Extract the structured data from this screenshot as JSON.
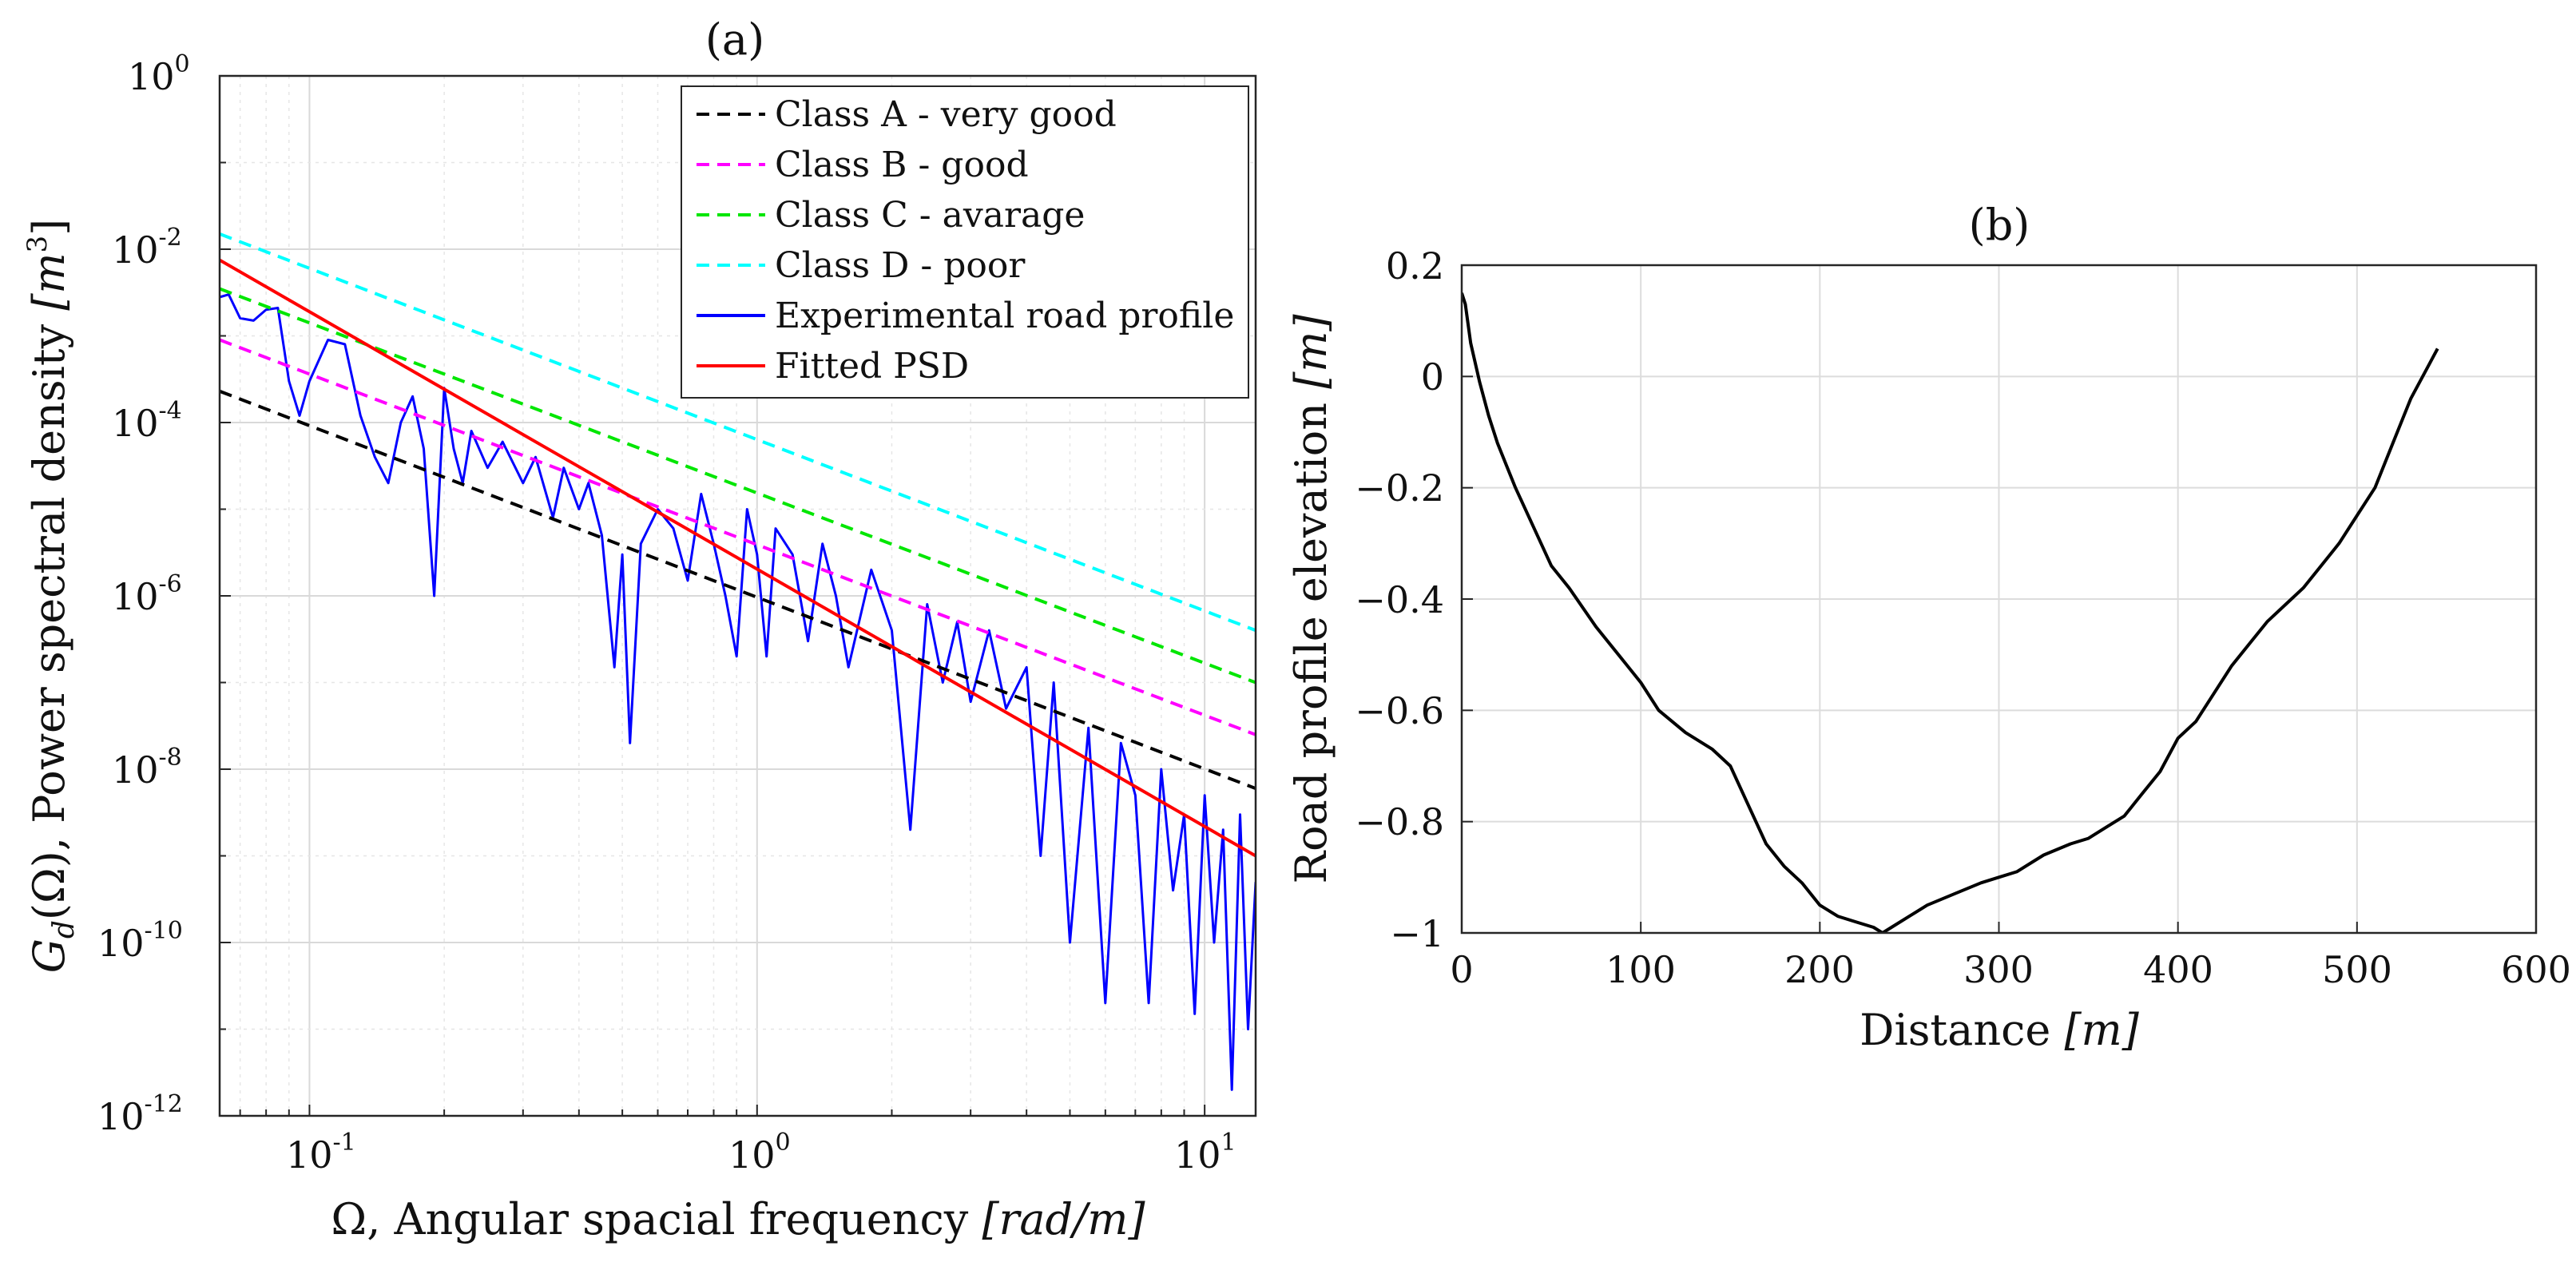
{
  "chart_data": [
    {
      "type": "line",
      "title": "(a)",
      "xscale": "log",
      "yscale": "log",
      "xlim": [
        0.063,
        13
      ],
      "ylim": [
        1e-12,
        1
      ],
      "xlabel": {
        "prefix": "Ω, Angular spacial frequency ",
        "unit": "[rad/m]"
      },
      "ylabel": {
        "prefix": "G",
        "sub": "d",
        "mid": "(Ω), Power spectral density ",
        "unit": "[m",
        "sup": "3",
        "close": "]"
      },
      "xticks": [
        {
          "base": "10",
          "exp": "-1"
        },
        {
          "base": "10",
          "exp": "0"
        },
        {
          "base": "10",
          "exp": "1"
        }
      ],
      "xtick_values": [
        0.1,
        1,
        10
      ],
      "yticks": [
        {
          "base": "10",
          "exp": "0"
        },
        {
          "base": "10",
          "exp": "-2"
        },
        {
          "base": "10",
          "exp": "-4"
        },
        {
          "base": "10",
          "exp": "-6"
        },
        {
          "base": "10",
          "exp": "-8"
        },
        {
          "base": "10",
          "exp": "-10"
        },
        {
          "base": "10",
          "exp": "-12"
        }
      ],
      "ytick_values": [
        1,
        0.01,
        0.0001,
        1e-06,
        1e-08,
        1e-10,
        1e-12
      ],
      "grid": true,
      "minor_grid": true,
      "legend_position": "top-right",
      "series": [
        {
          "name": "Class A - very good",
          "style": "dashed",
          "color": "#000000",
          "points": [
            [
              0.063,
              0.00023
            ],
            [
              13,
              6e-09
            ]
          ]
        },
        {
          "name": "Class B - good",
          "style": "dashed",
          "color": "#ff00ff",
          "points": [
            [
              0.063,
              0.0009
            ],
            [
              13,
              2.5e-08
            ]
          ]
        },
        {
          "name": "Class C - avarage",
          "style": "dashed",
          "color": "#00e600",
          "points": [
            [
              0.063,
              0.0035
            ],
            [
              13,
              1e-07
            ]
          ]
        },
        {
          "name": "Class D - poor",
          "style": "dashed",
          "color": "#00ffff",
          "points": [
            [
              0.063,
              0.015
            ],
            [
              13,
              4e-07
            ]
          ]
        },
        {
          "name": "Experimental road profile",
          "style": "solid",
          "color": "#0000ff",
          "points": [
            [
              0.063,
              0.0028
            ],
            [
              0.066,
              0.003
            ],
            [
              0.07,
              0.0016
            ],
            [
              0.075,
              0.0015
            ],
            [
              0.08,
              0.002
            ],
            [
              0.085,
              0.0021
            ],
            [
              0.09,
              0.0003
            ],
            [
              0.095,
              0.00012
            ],
            [
              0.1,
              0.0003
            ],
            [
              0.11,
              0.0009
            ],
            [
              0.12,
              0.0008
            ],
            [
              0.13,
              0.00012
            ],
            [
              0.14,
              4e-05
            ],
            [
              0.15,
              2e-05
            ],
            [
              0.16,
              0.0001
            ],
            [
              0.17,
              0.0002
            ],
            [
              0.18,
              5e-05
            ],
            [
              0.19,
              1e-06
            ],
            [
              0.2,
              0.00025
            ],
            [
              0.21,
              5e-05
            ],
            [
              0.22,
              2e-05
            ],
            [
              0.23,
              8e-05
            ],
            [
              0.25,
              3e-05
            ],
            [
              0.27,
              6e-05
            ],
            [
              0.3,
              2e-05
            ],
            [
              0.32,
              4e-05
            ],
            [
              0.35,
              8e-06
            ],
            [
              0.37,
              3e-05
            ],
            [
              0.4,
              1e-05
            ],
            [
              0.42,
              2e-05
            ],
            [
              0.45,
              5e-06
            ],
            [
              0.48,
              1.5e-07
            ],
            [
              0.5,
              3e-06
            ],
            [
              0.52,
              2e-08
            ],
            [
              0.55,
              4e-06
            ],
            [
              0.6,
              1e-05
            ],
            [
              0.65,
              6e-06
            ],
            [
              0.7,
              1.5e-06
            ],
            [
              0.75,
              1.5e-05
            ],
            [
              0.8,
              4e-06
            ],
            [
              0.85,
              1e-06
            ],
            [
              0.9,
              2e-07
            ],
            [
              0.95,
              1e-05
            ],
            [
              1.0,
              3e-06
            ],
            [
              1.05,
              2e-07
            ],
            [
              1.1,
              6e-06
            ],
            [
              1.2,
              3e-06
            ],
            [
              1.3,
              3e-07
            ],
            [
              1.4,
              4e-06
            ],
            [
              1.5,
              1e-06
            ],
            [
              1.6,
              1.5e-07
            ],
            [
              1.8,
              2e-06
            ],
            [
              2.0,
              4e-07
            ],
            [
              2.2,
              2e-09
            ],
            [
              2.4,
              8e-07
            ],
            [
              2.6,
              1e-07
            ],
            [
              2.8,
              5e-07
            ],
            [
              3.0,
              6e-08
            ],
            [
              3.3,
              4e-07
            ],
            [
              3.6,
              5e-08
            ],
            [
              4.0,
              1.5e-07
            ],
            [
              4.3,
              1e-09
            ],
            [
              4.6,
              1e-07
            ],
            [
              5.0,
              1e-10
            ],
            [
              5.5,
              3e-08
            ],
            [
              6.0,
              2e-11
            ],
            [
              6.5,
              2e-08
            ],
            [
              7.0,
              5e-09
            ],
            [
              7.5,
              2e-11
            ],
            [
              8.0,
              1e-08
            ],
            [
              8.5,
              4e-10
            ],
            [
              9.0,
              3e-09
            ],
            [
              9.5,
              1.5e-11
            ],
            [
              10.0,
              5e-09
            ],
            [
              10.5,
              1e-10
            ],
            [
              11.0,
              2e-09
            ],
            [
              11.5,
              2e-12
            ],
            [
              12.0,
              3e-09
            ],
            [
              12.5,
              1e-11
            ],
            [
              13.0,
              5e-10
            ]
          ]
        },
        {
          "name": "Fitted PSD",
          "style": "solid",
          "color": "#ff0000",
          "points": [
            [
              0.063,
              0.0075
            ],
            [
              13,
              1e-09
            ]
          ]
        }
      ]
    },
    {
      "type": "line",
      "title": "(b)",
      "xlim": [
        0,
        600
      ],
      "ylim": [
        -1,
        0.2
      ],
      "xlabel": {
        "prefix": "Distance ",
        "unit": "[m]"
      },
      "ylabel": {
        "prefix": "Road profile elevation ",
        "unit": "[m]"
      },
      "xticks": [
        "0",
        "100",
        "200",
        "300",
        "400",
        "500",
        "600"
      ],
      "xtick_values": [
        0,
        100,
        200,
        300,
        400,
        500,
        600
      ],
      "yticks": [
        "0.2",
        "0",
        "−0.2",
        "−0.4",
        "−0.6",
        "−0.8",
        "−1"
      ],
      "ytick_values": [
        0.2,
        0,
        -0.2,
        -0.4,
        -0.6,
        -0.8,
        -1
      ],
      "grid": true,
      "series": [
        {
          "name": "Road profile",
          "color": "#000000",
          "x": [
            0,
            2,
            5,
            10,
            15,
            20,
            25,
            30,
            40,
            50,
            60,
            75,
            90,
            100,
            110,
            125,
            140,
            150,
            160,
            170,
            180,
            190,
            200,
            210,
            220,
            230,
            235,
            240,
            250,
            260,
            275,
            290,
            300,
            310,
            325,
            340,
            350,
            360,
            370,
            375,
            380,
            390,
            400,
            410,
            420,
            430,
            440,
            450,
            460,
            470,
            480,
            490,
            500,
            510,
            520,
            530,
            540,
            545
          ],
          "y": [
            0.15,
            0.13,
            0.06,
            -0.01,
            -0.07,
            -0.12,
            -0.16,
            -0.2,
            -0.27,
            -0.34,
            -0.38,
            -0.45,
            -0.51,
            -0.55,
            -0.6,
            -0.64,
            -0.67,
            -0.7,
            -0.77,
            -0.84,
            -0.88,
            -0.91,
            -0.95,
            -0.97,
            -0.98,
            -0.99,
            -1.0,
            -0.99,
            -0.97,
            -0.95,
            -0.93,
            -0.91,
            -0.9,
            -0.89,
            -0.86,
            -0.84,
            -0.83,
            -0.81,
            -0.79,
            -0.77,
            -0.75,
            -0.71,
            -0.65,
            -0.62,
            -0.57,
            -0.52,
            -0.48,
            -0.44,
            -0.41,
            -0.38,
            -0.34,
            -0.3,
            -0.25,
            -0.2,
            -0.12,
            -0.04,
            0.02,
            0.05
          ]
        }
      ]
    }
  ]
}
